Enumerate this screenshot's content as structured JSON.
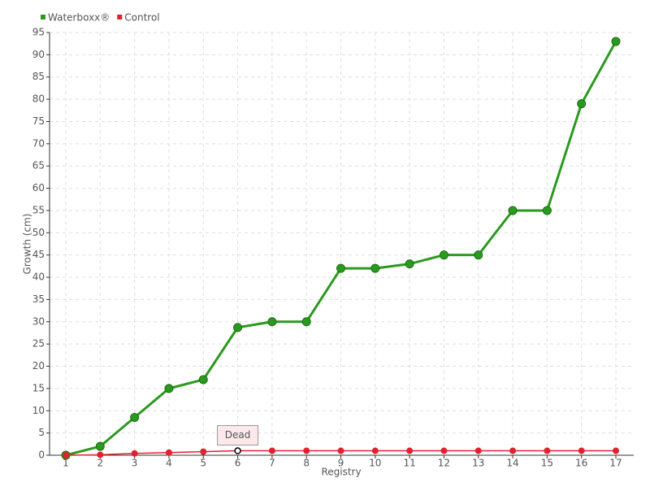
{
  "chart_data": {
    "type": "line",
    "x_label": "Registry",
    "y_label": "Growth (cm)",
    "categories": [
      "1",
      "2",
      "3",
      "4",
      "5",
      "6",
      "7",
      "8",
      "9",
      "10",
      "11",
      "12",
      "13",
      "14",
      "15",
      "16",
      "17"
    ],
    "series": [
      {
        "name": "Waterboxx®",
        "color": "#2a9a1e",
        "values": [
          0,
          2,
          8.5,
          15,
          17,
          28.7,
          30,
          30,
          42,
          42,
          43,
          45,
          45,
          55,
          55,
          79,
          93
        ]
      },
      {
        "name": "Control",
        "color": "#e3202f",
        "values": [
          0,
          0.1,
          0.4,
          0.6,
          0.8,
          1,
          1,
          1,
          1,
          1,
          1,
          1,
          1,
          1,
          1,
          1,
          1
        ]
      }
    ],
    "annotations": [
      {
        "text": "Dead",
        "series": 1,
        "index": 5
      }
    ],
    "ylim": [
      0,
      95
    ],
    "yticks": [
      0,
      5,
      10,
      15,
      20,
      25,
      30,
      35,
      40,
      45,
      50,
      55,
      60,
      65,
      70,
      75,
      80,
      85,
      90,
      95
    ],
    "grid": true,
    "legend": "top-left"
  }
}
